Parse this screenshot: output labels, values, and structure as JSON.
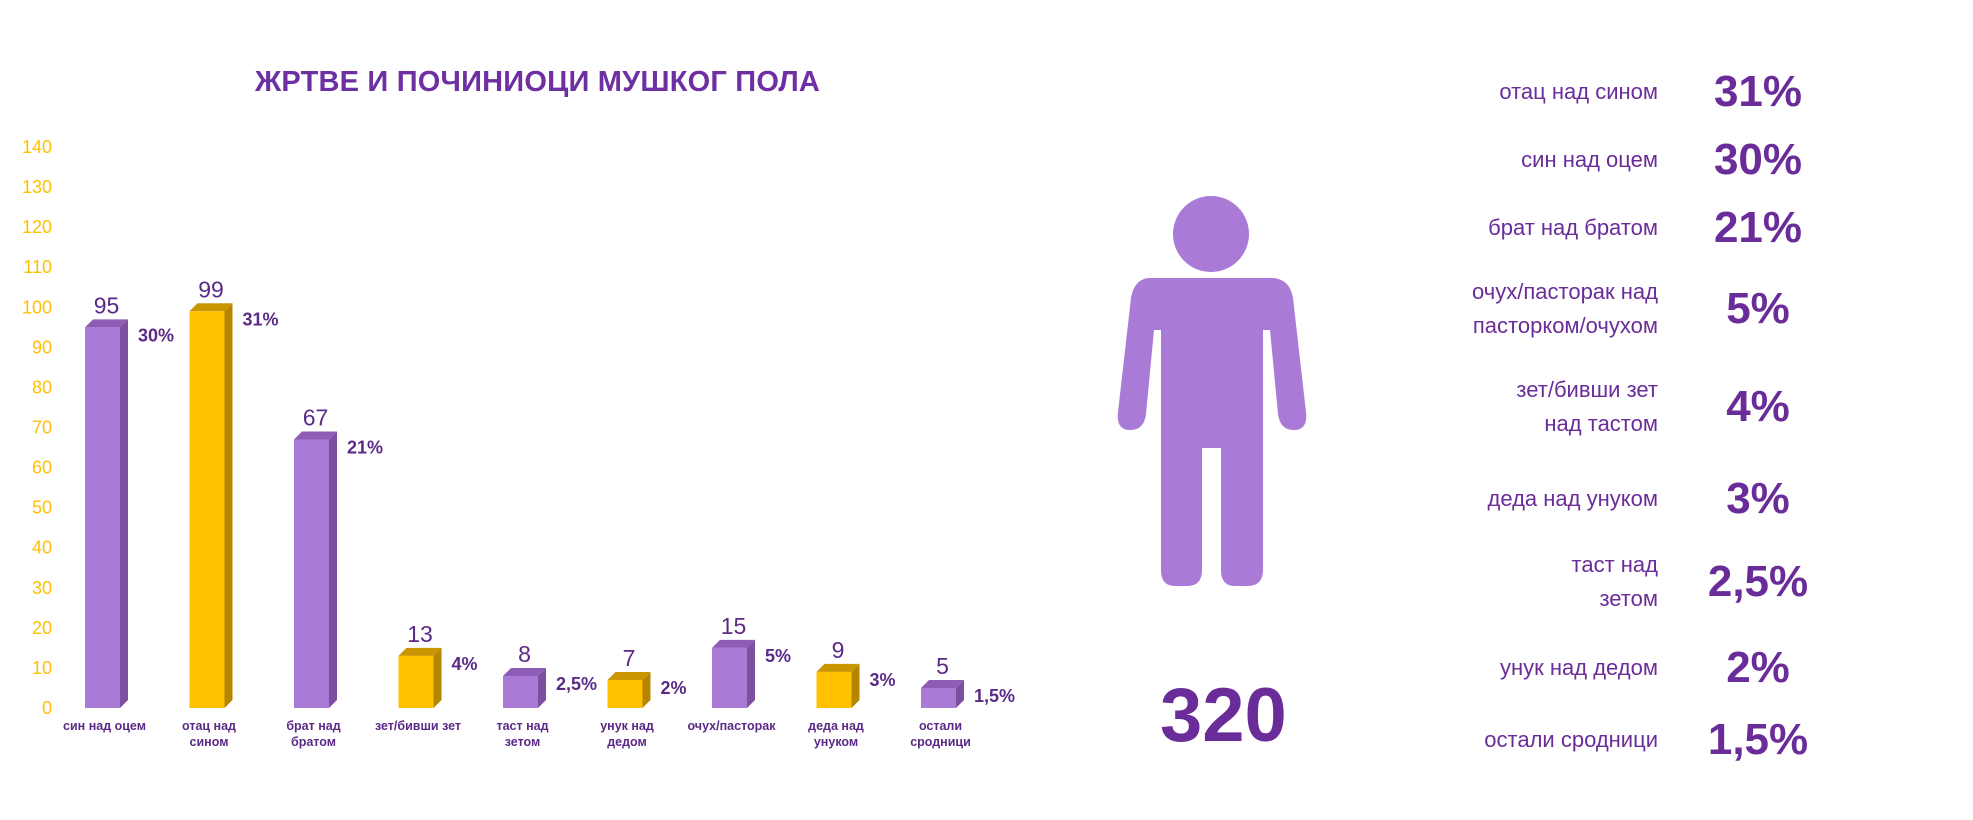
{
  "chart_data": {
    "type": "bar",
    "title": "ЖРТВЕ И ПОЧИНИОЦИ МУШКОГ ПОЛА",
    "ylim": [
      0,
      140
    ],
    "yticks": [
      0,
      10,
      20,
      30,
      40,
      50,
      60,
      70,
      80,
      90,
      100,
      110,
      120,
      130,
      140
    ],
    "categories": [
      [
        "син над оцем"
      ],
      [
        "отац над",
        "сином"
      ],
      [
        "брат над",
        "братом"
      ],
      [
        "зет/бивши зет"
      ],
      [
        "таст над",
        "зетом"
      ],
      [
        "унук над",
        "дедом"
      ],
      [
        "очух/пасторак"
      ],
      [
        "деда над",
        "унуком"
      ],
      [
        "остали",
        "сродници"
      ]
    ],
    "values": [
      95,
      99,
      67,
      13,
      8,
      7,
      15,
      9,
      5
    ],
    "percent_labels": [
      "30%",
      "31%",
      "21%",
      "4%",
      "2,5%",
      "2%",
      "5%",
      "3%",
      "1,5%"
    ],
    "bar_colors": [
      "purple",
      "gold",
      "purple",
      "gold",
      "purple",
      "gold",
      "purple",
      "gold",
      "purple"
    ],
    "grid": false
  },
  "colors": {
    "purple": "#a97ad6",
    "purple_side": "#7c4f9f",
    "purple_top": "#8e5bb5",
    "gold": "#ffc000",
    "gold_side": "#b48600",
    "gold_top": "#c99600",
    "tick": "#ffc000",
    "text": "#6a2c99",
    "figure": "#a97ad6"
  },
  "icon": "person-icon",
  "total": "320",
  "legend": [
    {
      "label": [
        "отац над сином"
      ],
      "pct": "31%"
    },
    {
      "label": [
        "син над оцем"
      ],
      "pct": "30%"
    },
    {
      "label": [
        "брат над братом"
      ],
      "pct": "21%"
    },
    {
      "label": [
        "очух/пасторак над",
        "пасторком/очухом"
      ],
      "pct": "5%"
    },
    {
      "label": [
        "зет/бивши зет",
        "над тастом"
      ],
      "pct": "4%"
    },
    {
      "label": [
        "деда над унуком"
      ],
      "pct": "3%"
    },
    {
      "label": [
        "таст над",
        "зетом"
      ],
      "pct": "2,5%"
    },
    {
      "label": [
        "унук над дедом"
      ],
      "pct": "2%"
    },
    {
      "label": [
        "остали сродници"
      ],
      "pct": "1,5%"
    }
  ]
}
